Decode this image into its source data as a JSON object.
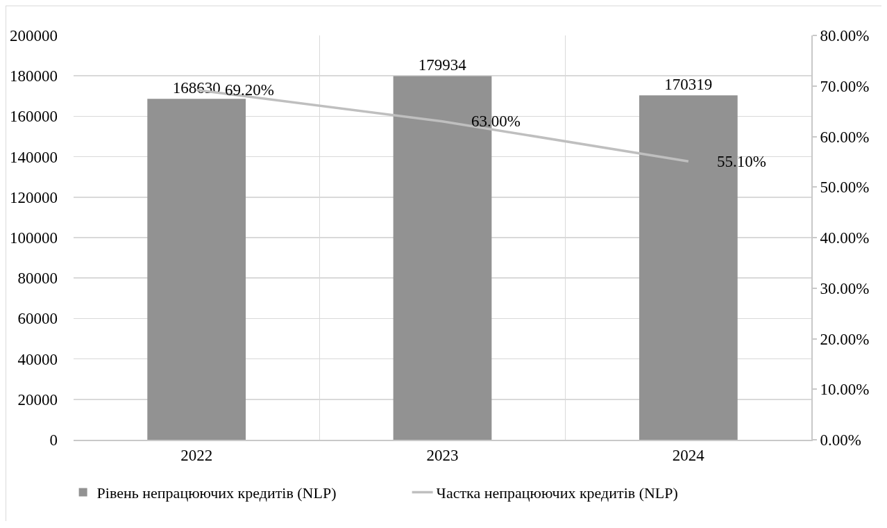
{
  "chart_data": {
    "type": "bar",
    "categories": [
      "2022",
      "2023",
      "2024"
    ],
    "series": [
      {
        "name": "Рівень непрацюючих кредитів (NLP)",
        "color": "#929292",
        "values": [
          168630,
          179934,
          170319
        ],
        "value_labels": [
          "168630",
          "179934",
          "170319"
        ]
      },
      {
        "name": "Частка непрацюючих кредитів (NLP)",
        "type": "line",
        "axis": "y2",
        "color": "#bfbfbf",
        "values": [
          69.2,
          63.0,
          55.1
        ],
        "value_labels": [
          "69.20%",
          "63.00%",
          "55.10%"
        ]
      }
    ],
    "ylim": [
      0,
      200000
    ],
    "yticks": [
      0,
      20000,
      40000,
      60000,
      80000,
      100000,
      120000,
      140000,
      160000,
      180000,
      200000
    ],
    "y2lim": [
      0,
      80
    ],
    "y2ticks": [
      {
        "value": 0,
        "label": "0.00%"
      },
      {
        "value": 10,
        "label": "10.00%"
      },
      {
        "value": 20,
        "label": "20.00%"
      },
      {
        "value": 30,
        "label": "30.00%"
      },
      {
        "value": 40,
        "label": "40.00%"
      },
      {
        "value": 50,
        "label": "50.00%"
      },
      {
        "value": 60,
        "label": "60.00%"
      },
      {
        "value": 70,
        "label": "70.00%"
      },
      {
        "value": 80,
        "label": "80.00%"
      }
    ],
    "grid": true,
    "legend": "bottom"
  }
}
